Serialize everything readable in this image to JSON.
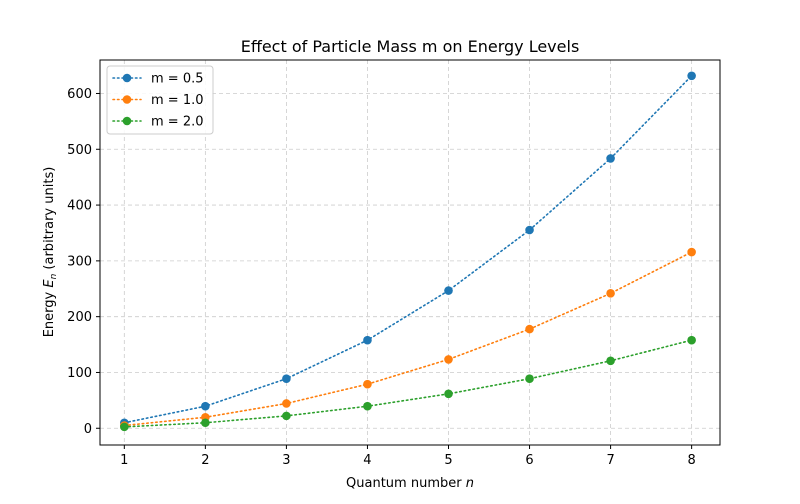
{
  "chart_data": {
    "type": "line",
    "title": "Effect of Particle Mass m on Energy Levels",
    "xlabel_prefix": "Quantum number ",
    "xlabel_var": "n",
    "ylabel_prefix": "Energy ",
    "ylabel_var": "E",
    "ylabel_sub": "n",
    "ylabel_suffix": " (arbitrary units)",
    "x": [
      1,
      2,
      3,
      4,
      5,
      6,
      7,
      8
    ],
    "xticks": [
      1,
      2,
      3,
      4,
      5,
      6,
      7,
      8
    ],
    "yticks": [
      0,
      100,
      200,
      300,
      400,
      500,
      600
    ],
    "xlim": [
      0.7,
      8.35
    ],
    "ylim": [
      -30,
      660
    ],
    "grid": true,
    "legend_position": "top-left",
    "series": [
      {
        "name": "m = 0.5",
        "color": "#1f77b4",
        "values": [
          9.87,
          39.5,
          88.8,
          157.9,
          246.7,
          355.3,
          483.6,
          631.7
        ]
      },
      {
        "name": "m = 1.0",
        "color": "#ff7f0e",
        "values": [
          4.93,
          19.7,
          44.4,
          79.0,
          123.4,
          177.7,
          241.8,
          315.8
        ]
      },
      {
        "name": "m = 2.0",
        "color": "#2ca02c",
        "values": [
          2.47,
          9.87,
          22.2,
          39.5,
          61.7,
          88.8,
          120.9,
          157.9
        ]
      }
    ]
  }
}
